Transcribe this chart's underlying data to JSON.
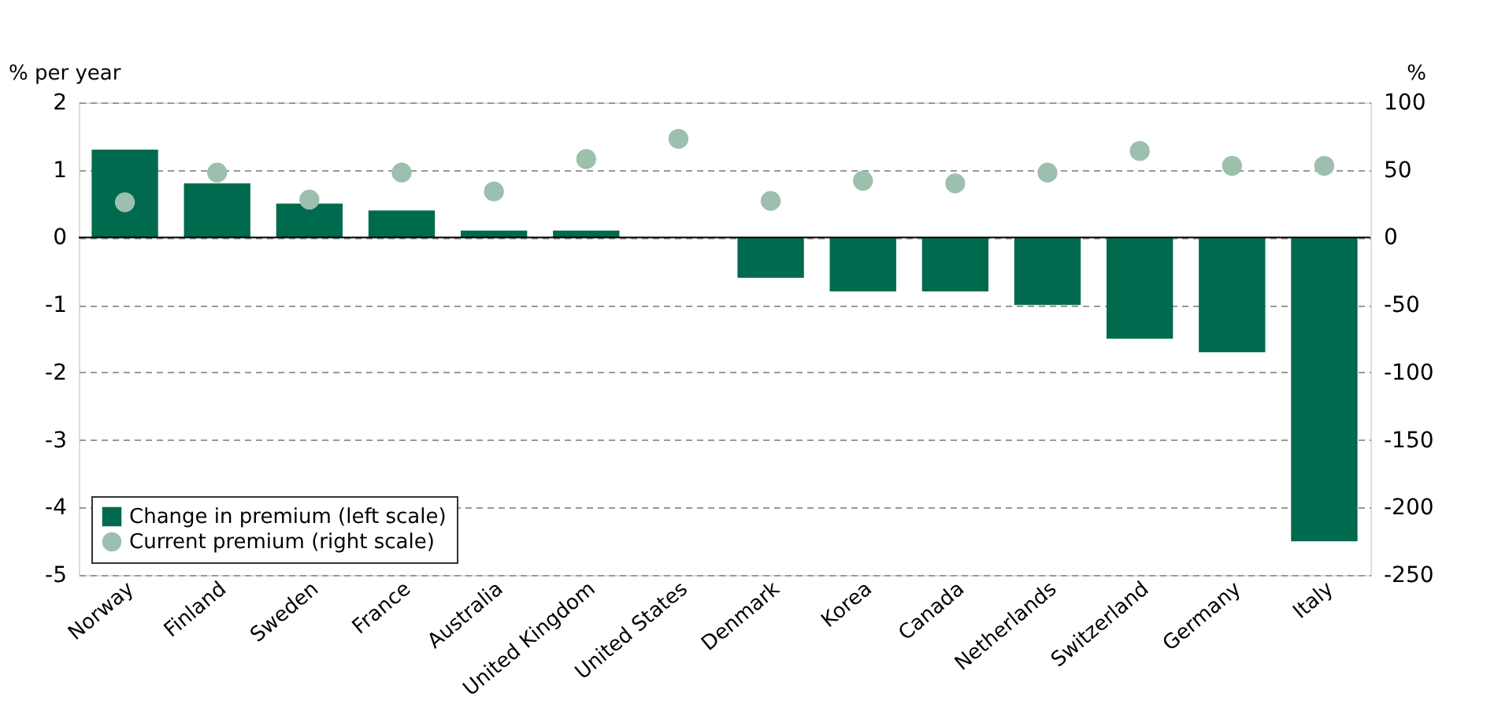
{
  "chart_data": {
    "type": "bar",
    "ylabel": "% per year",
    "y2label": "%",
    "categories": [
      "Norway",
      "Finland",
      "Sweden",
      "France",
      "Australia",
      "United Kingdom",
      "United States",
      "Denmark",
      "Korea",
      "Canada",
      "Netherlands",
      "Switzerland",
      "Germany",
      "Italy"
    ],
    "series": [
      {
        "name": "Change in premium (left scale)",
        "color": "#006a4e",
        "values": [
          1.3,
          0.8,
          0.5,
          0.4,
          0.1,
          0.1,
          0.0,
          -0.6,
          -0.8,
          -0.8,
          -1.0,
          -1.5,
          -1.7,
          -4.5
        ]
      },
      {
        "name": "Current premium (right scale)",
        "type": "scatter",
        "axis": "y2",
        "color": "#9dbfae",
        "marker": "circle",
        "values": [
          26,
          48,
          28,
          48,
          34,
          58,
          73,
          27,
          42,
          40,
          48,
          64,
          53,
          53
        ]
      }
    ],
    "ylim": [
      -5,
      2
    ],
    "yticks": [
      -5,
      -4,
      -3,
      -2,
      -1,
      0,
      1,
      2
    ],
    "y2lim": [
      -250,
      100
    ],
    "y2ticks": [
      -250,
      -200,
      -150,
      -100,
      -50,
      0,
      50,
      100
    ],
    "grid": "y",
    "legend": "bottom left"
  }
}
